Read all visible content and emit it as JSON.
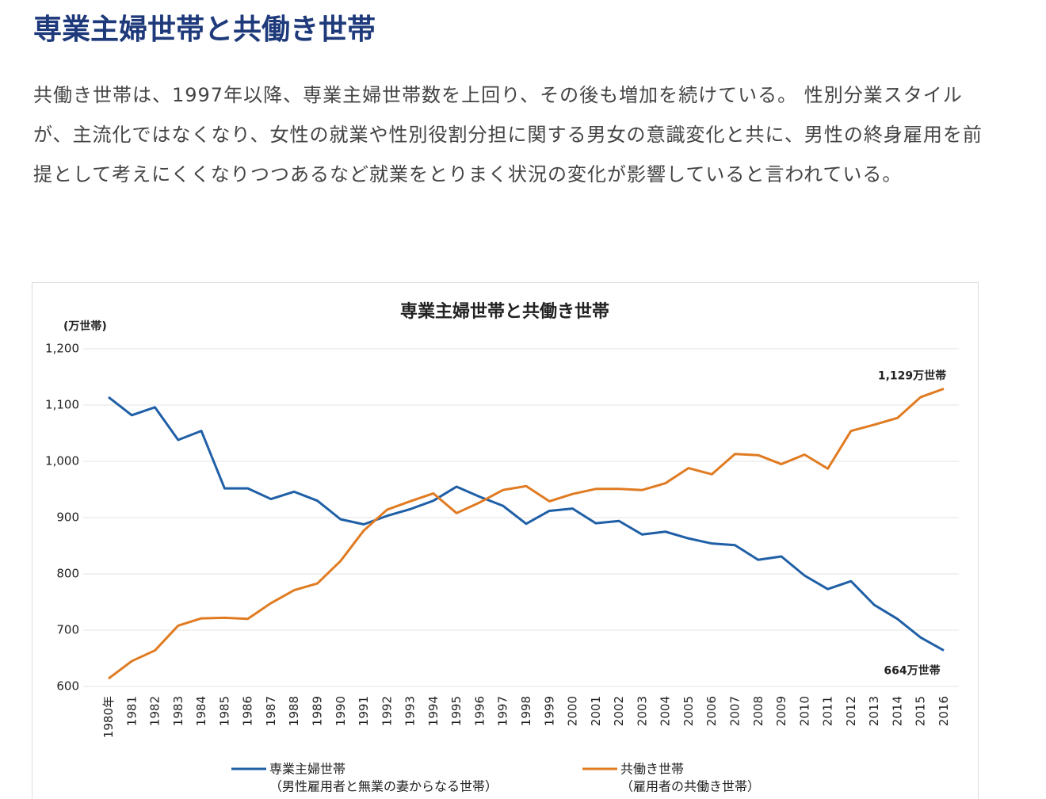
{
  "header": {
    "title": "専業主婦世帯と共働き世帯"
  },
  "body": {
    "paragraph": "共働き世帯は、1997年以降、専業主婦世帯数を上回り、その後も増加を続けている。 性別分業スタイルが、主流化ではなくなり、女性の就業や性別役割分担に関する男女の意識変化と共に、男性の終身雇用を前提として考えにくくなりつつあるなど就業をとりまく状況の変化が影響していると言われている。"
  },
  "chart_data": {
    "type": "line",
    "title": "専業主婦世帯と共働き世帯",
    "y_unit": "(万世帯)",
    "categories": [
      "1980年",
      "1981",
      "1982",
      "1983",
      "1984",
      "1985",
      "1986",
      "1987",
      "1988",
      "1989",
      "1990",
      "1991",
      "1992",
      "1993",
      "1994",
      "1995",
      "1996",
      "1997",
      "1998",
      "1999",
      "2000",
      "2001",
      "2002",
      "2003",
      "2004",
      "2005",
      "2006",
      "2007",
      "2008",
      "2009",
      "2010",
      "2011",
      "2012",
      "2013",
      "2014",
      "2015",
      "2016"
    ],
    "series": [
      {
        "name": "専業主婦世帯",
        "note": "（男性雇用者と無業の妻からなる世帯）",
        "color": "#1f5fa6",
        "values": [
          1114,
          1082,
          1096,
          1038,
          1054,
          952,
          952,
          933,
          946,
          930,
          897,
          888,
          903,
          915,
          930,
          955,
          937,
          921,
          889,
          912,
          916,
          890,
          894,
          870,
          875,
          863,
          854,
          851,
          825,
          831,
          797,
          773,
          787,
          745,
          720,
          687,
          664
        ],
        "end_label": "664万世帯"
      },
      {
        "name": "共働き世帯",
        "note": "（雇用者の共働き世帯）",
        "color": "#e07b22",
        "values": [
          614,
          645,
          664,
          708,
          721,
          722,
          720,
          748,
          771,
          783,
          823,
          877,
          914,
          929,
          943,
          908,
          927,
          949,
          956,
          929,
          942,
          951,
          951,
          949,
          961,
          988,
          977,
          1013,
          1011,
          995,
          1012,
          987,
          1054,
          1065,
          1077,
          1114,
          1129
        ],
        "end_label": "1,129万世帯"
      }
    ],
    "ylim": [
      600,
      1200
    ],
    "yticks": [
      600,
      700,
      800,
      900,
      {
        "value": 1000,
        "label": "1,000"
      },
      {
        "value": 1100,
        "label": "1,100"
      },
      {
        "value": 1200,
        "label": "1,200"
      }
    ],
    "grid": true
  }
}
